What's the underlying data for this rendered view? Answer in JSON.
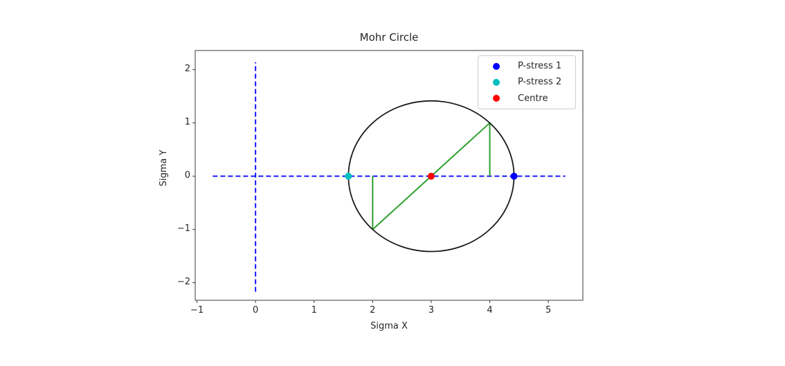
{
  "figure": {
    "title": "Mohr Circle",
    "xlabel": "Sigma X",
    "ylabel": "Sigma Y"
  },
  "chart_data": {
    "type": "scatter",
    "title": "Mohr Circle",
    "xlabel": "Sigma X",
    "ylabel": "Sigma Y",
    "xlim": [
      -1.03,
      5.59
    ],
    "ylim": [
      -2.33,
      2.36
    ],
    "xticks": [
      -1,
      0,
      1,
      2,
      3,
      4,
      5
    ],
    "yticks": [
      -2,
      -1,
      0,
      1,
      2
    ],
    "grid": false,
    "legend_position": "upper right",
    "axis_color": "#3a3a3a",
    "circle": {
      "name": "mohr-circle",
      "center": [
        3,
        0
      ],
      "radius": 1.414,
      "color": "#1a1a1a",
      "linewidth": 1.8
    },
    "segments": [
      {
        "name": "sigma-axis-dashed-line",
        "points": [
          [
            -0.73,
            0
          ],
          [
            5.29,
            0
          ]
        ],
        "color": "#1515ff",
        "dashed": true,
        "linewidth": 2
      },
      {
        "name": "tau-axis-dashed-line",
        "points": [
          [
            0,
            -2.17
          ],
          [
            0,
            2.14
          ]
        ],
        "color": "#1515ff",
        "dashed": true,
        "linewidth": 2
      },
      {
        "name": "diameter-line",
        "points": [
          [
            2,
            -1
          ],
          [
            4,
            1
          ]
        ],
        "color": "#2ca02c",
        "dashed": false,
        "linewidth": 2
      },
      {
        "name": "shear-line-left",
        "points": [
          [
            2,
            0
          ],
          [
            2,
            -1
          ]
        ],
        "color": "#2ca02c",
        "dashed": false,
        "linewidth": 2
      },
      {
        "name": "shear-line-right",
        "points": [
          [
            4,
            0
          ],
          [
            4,
            1
          ]
        ],
        "color": "#2ca02c",
        "dashed": false,
        "linewidth": 2
      }
    ],
    "points": [
      {
        "name": "P-stress 1",
        "x": 4.414,
        "y": 0,
        "color": "#0000ff"
      },
      {
        "name": "P-stress 2",
        "x": 1.586,
        "y": 0,
        "color": "#00bfbf"
      },
      {
        "name": "Centre",
        "x": 3,
        "y": 0,
        "color": "#ff0000"
      }
    ],
    "legend": [
      {
        "label": "P-stress 1",
        "color": "#0000ff"
      },
      {
        "label": "P-stress 2",
        "color": "#00bfbf"
      },
      {
        "label": "Centre",
        "color": "#ff0000"
      }
    ]
  }
}
